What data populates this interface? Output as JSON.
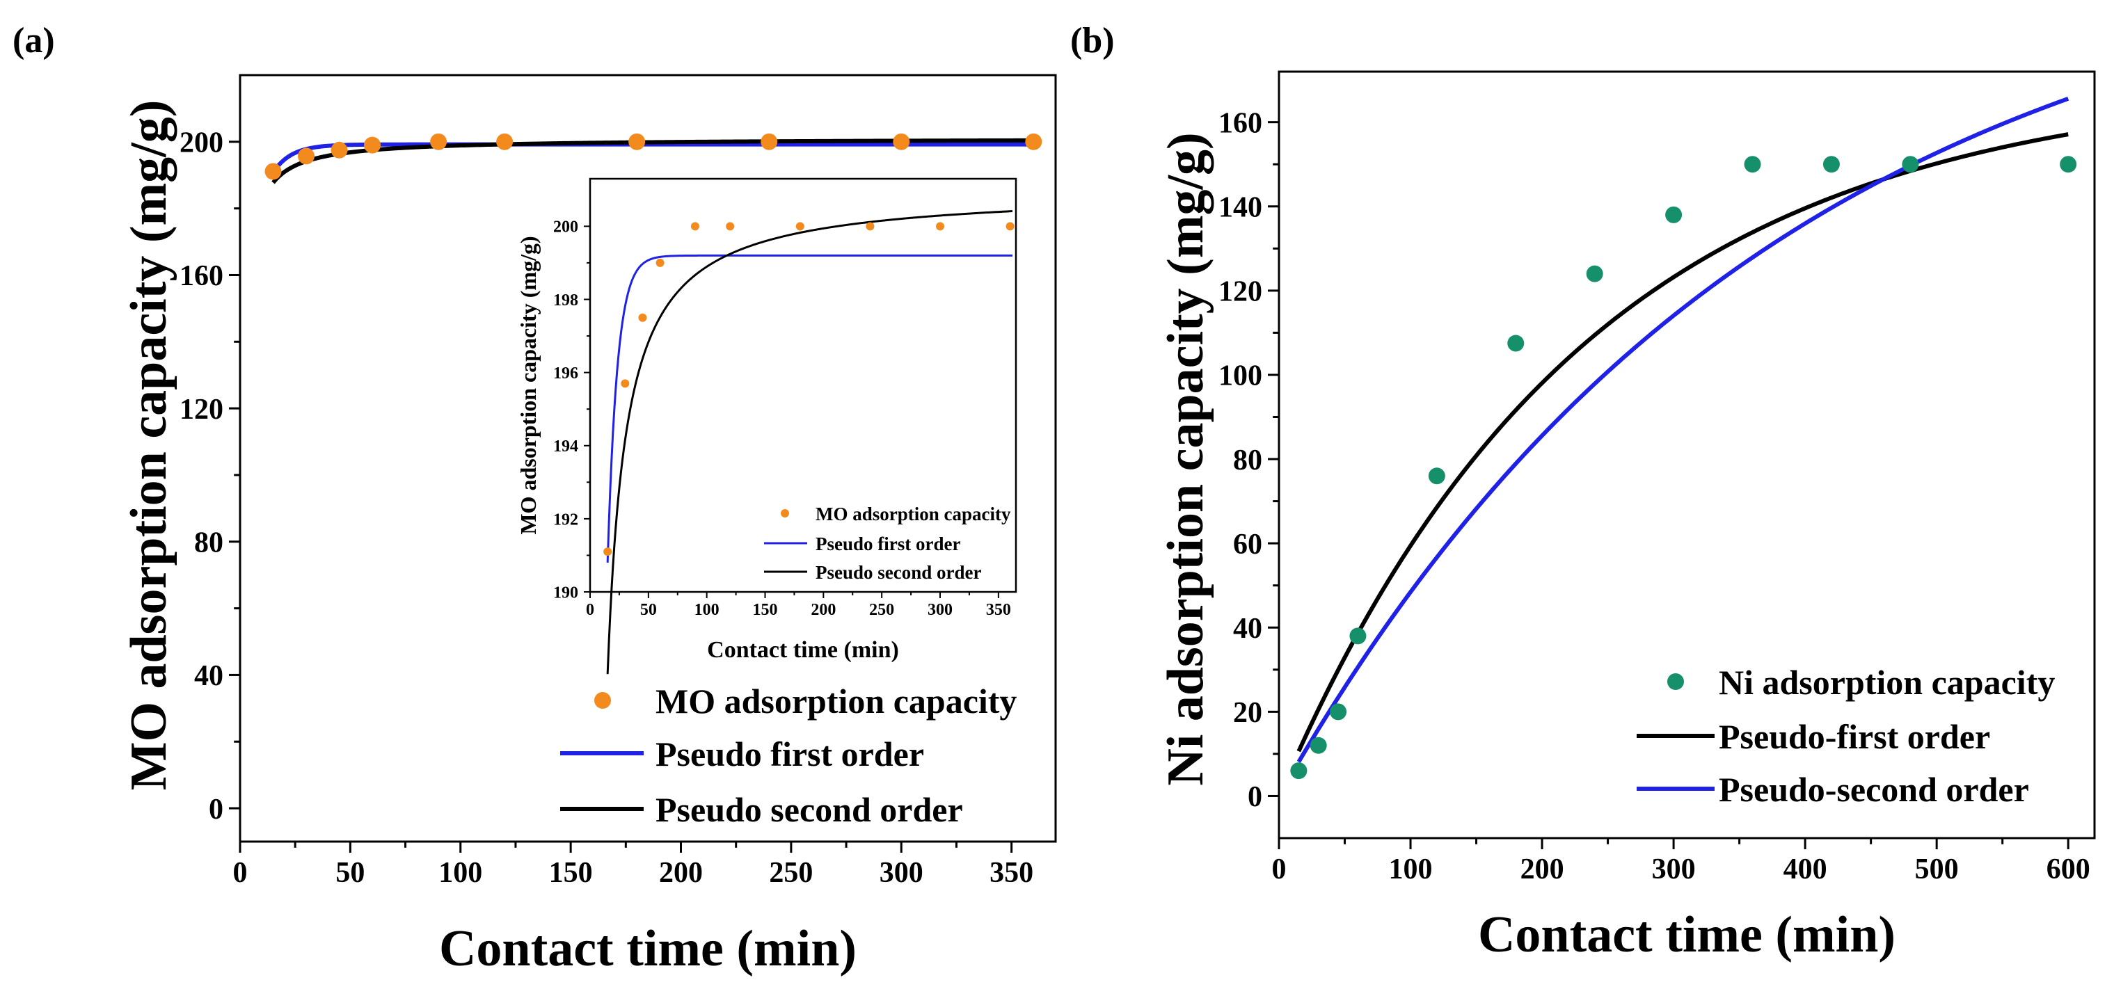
{
  "colors": {
    "mo_marker": "#f28a1e",
    "ni_marker": "#16906a",
    "pfo_line": "#1f22e6",
    "pso_line": "#000000",
    "axis": "#000000"
  },
  "chart_data": [
    {
      "id": "a",
      "panel_label": "(a)",
      "type": "scatter",
      "xlabel": "Contact time (min)",
      "ylabel": "MO adsorption capacity (mg/g)",
      "xlim": [
        0,
        370
      ],
      "ylim": [
        -10,
        220
      ],
      "xticks": [
        0,
        50,
        100,
        150,
        200,
        250,
        300,
        350
      ],
      "yticks": [
        0,
        40,
        80,
        120,
        160,
        200
      ],
      "legend_position": "bottom-right",
      "legend": [
        "MO adsorption capacity",
        "Pseudo first order",
        "Pseudo second order"
      ],
      "series": [
        {
          "name": "MO adsorption capacity",
          "kind": "points",
          "x": [
            15,
            30,
            45,
            60,
            90,
            120,
            180,
            240,
            300,
            360
          ],
          "y": [
            191.1,
            195.7,
            197.5,
            199.0,
            200.0,
            200.0,
            200.0,
            200.0,
            200.0,
            200.0
          ]
        },
        {
          "name": "Pseudo first order",
          "kind": "model",
          "model": "pfo",
          "qe": 199.2,
          "k": 0.12,
          "x0": 15,
          "q0": 190.8,
          "xmin": 15,
          "xmax": 362
        },
        {
          "name": "Pseudo second order",
          "kind": "model",
          "model": "pso",
          "qe": 201.0,
          "k": 0.0047,
          "xmin": 15,
          "xmax": 362
        }
      ],
      "inset": {
        "xlabel": "Contact time (min)",
        "ylabel": "MO adsorption capacity (mg/g)",
        "xlim": [
          0,
          365
        ],
        "ylim": [
          190,
          201.3
        ],
        "xticks": [
          0,
          50,
          100,
          150,
          200,
          250,
          300,
          350
        ],
        "yticks": [
          190,
          192,
          194,
          196,
          198,
          200
        ],
        "legend_position": "bottom-right",
        "legend": [
          "MO adsorption capacity",
          "Pseudo first order",
          "Pseudo second order"
        ]
      }
    },
    {
      "id": "b",
      "panel_label": "(b)",
      "type": "scatter",
      "xlabel": "Contact time (min)",
      "ylabel": "Ni adsorption capacity (mg/g)",
      "xlim": [
        0,
        620
      ],
      "ylim": [
        -10,
        172
      ],
      "xticks": [
        0,
        100,
        200,
        300,
        400,
        500,
        600
      ],
      "yticks": [
        0,
        20,
        40,
        60,
        80,
        100,
        120,
        140,
        160
      ],
      "legend_position": "bottom-right",
      "legend": [
        "Ni adsorption capacity",
        "Pseudo-first order",
        "Pseudo-second order"
      ],
      "series": [
        {
          "name": "Ni adsorption capacity",
          "kind": "points",
          "x": [
            15,
            30,
            45,
            60,
            120,
            180,
            240,
            300,
            360,
            420,
            480,
            600
          ],
          "y": [
            6,
            12,
            20,
            38,
            76,
            107.5,
            124,
            138,
            150,
            150,
            150,
            150
          ]
        },
        {
          "name": "Pseudo-first order",
          "kind": "model",
          "model": "pfo",
          "qe": 170.0,
          "k": 0.0043,
          "x0": 0,
          "q0": 0,
          "xmin": 15,
          "xmax": 600
        },
        {
          "name": "Pseudo-second order",
          "kind": "model",
          "model": "pfo",
          "qe": 208.0,
          "k": 0.00265,
          "x0": 0,
          "q0": 0,
          "xmin": 15,
          "xmax": 600
        }
      ]
    }
  ]
}
